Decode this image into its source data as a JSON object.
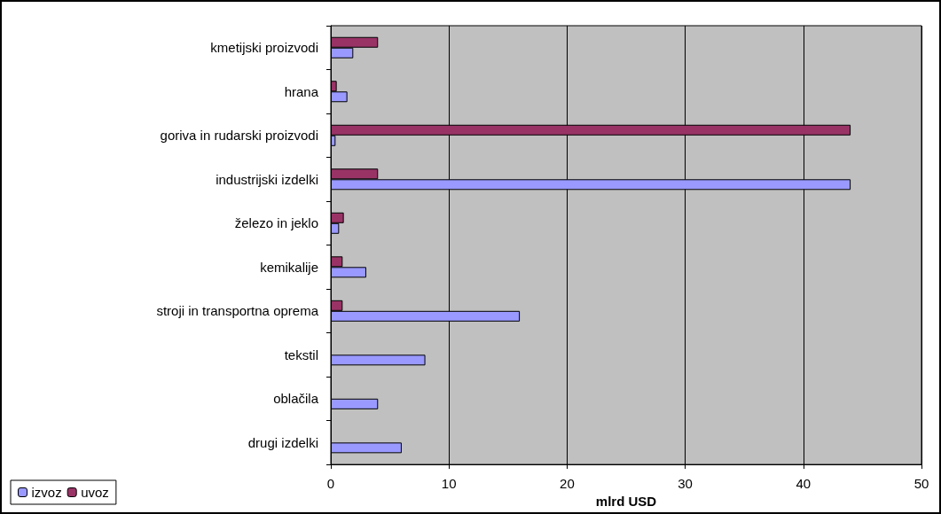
{
  "chart_data": {
    "type": "bar",
    "orientation": "horizontal",
    "xlabel": "mlrd USD",
    "categories": [
      "kmetijski proizvodi",
      "hrana",
      "goriva in rudarski proizvodi",
      "industrijski izdelki",
      "železo in jeklo",
      "kemikalije",
      "stroji in transportna oprema",
      "tekstil",
      "oblačila",
      "drugi izdelki"
    ],
    "series": [
      {
        "name": "izvoz",
        "color": "#9999ff",
        "values": [
          1.9,
          1.4,
          0.4,
          44,
          0.7,
          3,
          16,
          8,
          4,
          6
        ]
      },
      {
        "name": "uvoz",
        "color": "#993366",
        "values": [
          4,
          0.5,
          44,
          4,
          1.1,
          1,
          1,
          null,
          null,
          null
        ]
      }
    ],
    "xlim": [
      0,
      50
    ],
    "xticks": [
      0,
      10,
      20,
      30,
      40,
      50
    ],
    "grid": "x",
    "legend": "bottom left"
  }
}
